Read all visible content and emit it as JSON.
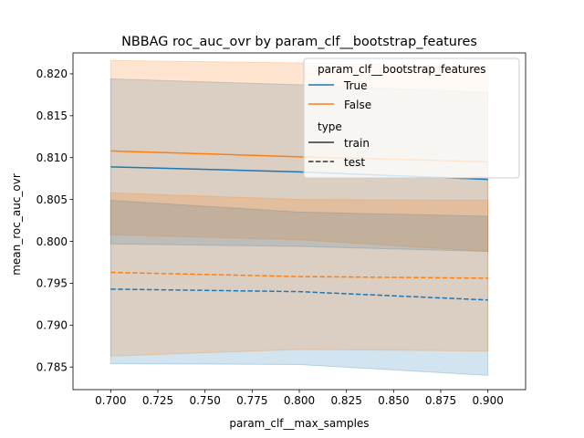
{
  "chart_data": {
    "type": "line",
    "title": "NBBAG roc_auc_ovr by param_clf__bootstrap_features",
    "xlabel": "param_clf__max_samples",
    "ylabel": "mean_roc_auc_ovr",
    "xlim": [
      0.68,
      0.92
    ],
    "ylim": [
      0.7823,
      0.8225
    ],
    "x_ticks": [
      "0.700",
      "0.725",
      "0.750",
      "0.775",
      "0.800",
      "0.825",
      "0.850",
      "0.875",
      "0.900"
    ],
    "y_ticks": [
      "0.785",
      "0.790",
      "0.795",
      "0.800",
      "0.805",
      "0.810",
      "0.815",
      "0.820"
    ],
    "x": [
      0.7,
      0.8,
      0.9
    ],
    "grid": false,
    "legend": {
      "placement": "top-right",
      "hue_title": "param_clf__bootstrap_features",
      "style_title": "type",
      "hue_entries": [
        {
          "label": "True",
          "color": "#1f77b4"
        },
        {
          "label": "False",
          "color": "#ff7f0e"
        }
      ],
      "style_entries": [
        {
          "label": "train",
          "dash": "solid"
        },
        {
          "label": "test",
          "dash": "dashed"
        }
      ]
    },
    "series": [
      {
        "hue": "True",
        "type": "train",
        "color": "#1f77b4",
        "dash": "solid",
        "values": [
          0.8089,
          0.8083,
          0.8074
        ],
        "band_lower": [
          0.7997,
          0.7994,
          0.7988
        ],
        "band_upper": [
          0.8194,
          0.8187,
          0.8178
        ]
      },
      {
        "hue": "False",
        "type": "train",
        "color": "#ff7f0e",
        "dash": "solid",
        "values": [
          0.8108,
          0.8101,
          0.8095
        ],
        "band_lower": [
          0.8008,
          0.8002,
          0.7988
        ],
        "band_upper": [
          0.8216,
          0.8213,
          0.8209
        ]
      },
      {
        "hue": "True",
        "type": "test",
        "color": "#1f77b4",
        "dash": "dashed",
        "values": [
          0.7943,
          0.794,
          0.793
        ],
        "band_lower": [
          0.7854,
          0.7853,
          0.784
        ],
        "band_upper": [
          0.8049,
          0.8035,
          0.803
        ]
      },
      {
        "hue": "False",
        "type": "test",
        "color": "#ff7f0e",
        "dash": "dashed",
        "values": [
          0.7963,
          0.7958,
          0.7956
        ],
        "band_lower": [
          0.7863,
          0.7871,
          0.7869
        ],
        "band_upper": [
          0.8058,
          0.805,
          0.8049
        ]
      }
    ]
  }
}
